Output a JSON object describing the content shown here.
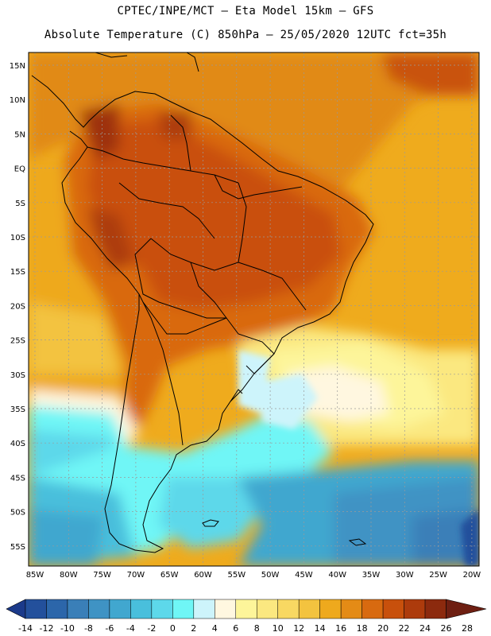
{
  "header": {
    "line1": "CPTEC/INPE/MCT –  Eta Model 15km – GFS",
    "line2": "Absolute Temperature (C) 850hPa – 25/05/2020 12UTC fct=35h"
  },
  "map": {
    "lat_ticks": [
      "15N",
      "10N",
      "5N",
      "EQ",
      "5S",
      "10S",
      "15S",
      "20S",
      "25S",
      "30S",
      "35S",
      "40S",
      "45S",
      "50S",
      "55S"
    ],
    "lon_ticks": [
      "85W",
      "80W",
      "75W",
      "70W",
      "65W",
      "60W",
      "55W",
      "50W",
      "45W",
      "40W",
      "35W",
      "30W",
      "25W",
      "20W"
    ]
  },
  "colorbar": {
    "labels": [
      "-14",
      "-12",
      "-10",
      "-8",
      "-6",
      "-4",
      "-2",
      "0",
      "2",
      "4",
      "6",
      "8",
      "10",
      "12",
      "14",
      "16",
      "18",
      "20",
      "22",
      "24",
      "26",
      "28"
    ],
    "colors": [
      "#1b3a8a",
      "#23509c",
      "#2c66aa",
      "#3a7fb8",
      "#3f93c4",
      "#41a7cf",
      "#49bfdc",
      "#5dd8ea",
      "#6ff6f6",
      "#cdf4fb",
      "#fff7e0",
      "#fdf59a",
      "#fbe880",
      "#f8d862",
      "#f3c33f",
      "#eea91d",
      "#e48b16",
      "#d86a10",
      "#c8500c",
      "#ad3b0c",
      "#8c2a0e",
      "#6e1f12"
    ]
  }
}
